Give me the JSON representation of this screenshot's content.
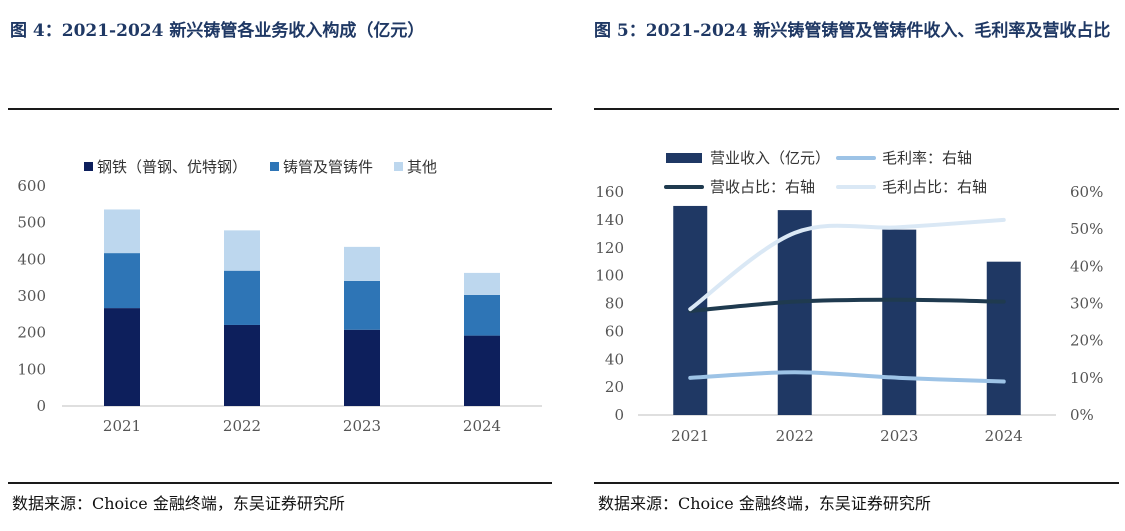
{
  "figures": [
    {
      "title": "图 4：2021-2024 新兴铸管各业务收入构成（亿元）",
      "source": "数据来源：Choice 金融终端，东吴证券研究所"
    },
    {
      "title": "图 5：2021-2024 新兴铸管铸管及管铸件收入、毛利率及营收占比",
      "source": "数据来源：Choice 金融终端，东吴证券研究所"
    }
  ],
  "chart_data": [
    {
      "type": "bar",
      "stacked": true,
      "categories": [
        "2021",
        "2022",
        "2023",
        "2024"
      ],
      "series": [
        {
          "name": "钢铁（普钢、优特钢）",
          "values": [
            267,
            221,
            208,
            192
          ],
          "color": "#0d1f5c"
        },
        {
          "name": "铸管及管铸件",
          "values": [
            150,
            148,
            133,
            111
          ],
          "color": "#2e75b6"
        },
        {
          "name": "其他",
          "values": [
            119,
            110,
            93,
            60
          ],
          "color": "#bdd7ee"
        }
      ],
      "yticks": [
        "0",
        "100",
        "200",
        "300",
        "400",
        "500",
        "600"
      ],
      "ylim": [
        0,
        600
      ],
      "grid": false,
      "legend_position": "top"
    },
    {
      "type": "bar",
      "categories": [
        "2021",
        "2022",
        "2023",
        "2024"
      ],
      "series": [
        {
          "name": "营业收入（亿元）",
          "type": "bar",
          "axis": "left",
          "values": [
            150,
            147,
            133,
            110
          ],
          "color": "#1f3864"
        },
        {
          "name": "毛利率：右轴",
          "type": "line",
          "axis": "right",
          "values": [
            0.1,
            0.115,
            0.1,
            0.09
          ],
          "color": "#9dc3e6"
        },
        {
          "name": "营收占比：右轴",
          "type": "line",
          "axis": "right",
          "values": [
            0.28,
            0.305,
            0.31,
            0.305
          ],
          "color": "#1f3a4f"
        },
        {
          "name": "毛利占比：右轴",
          "type": "line",
          "axis": "right",
          "values": [
            0.285,
            0.49,
            0.505,
            0.525
          ],
          "color": "#dae8f5"
        }
      ],
      "yticks_left": [
        "0",
        "20",
        "40",
        "60",
        "80",
        "100",
        "120",
        "140",
        "160"
      ],
      "yticks_right": [
        "0%",
        "10%",
        "20%",
        "30%",
        "40%",
        "50%",
        "60%"
      ],
      "ylim_left": [
        0,
        160
      ],
      "ylim_right": [
        0,
        0.6
      ],
      "grid": false,
      "legend_position": "top"
    }
  ]
}
